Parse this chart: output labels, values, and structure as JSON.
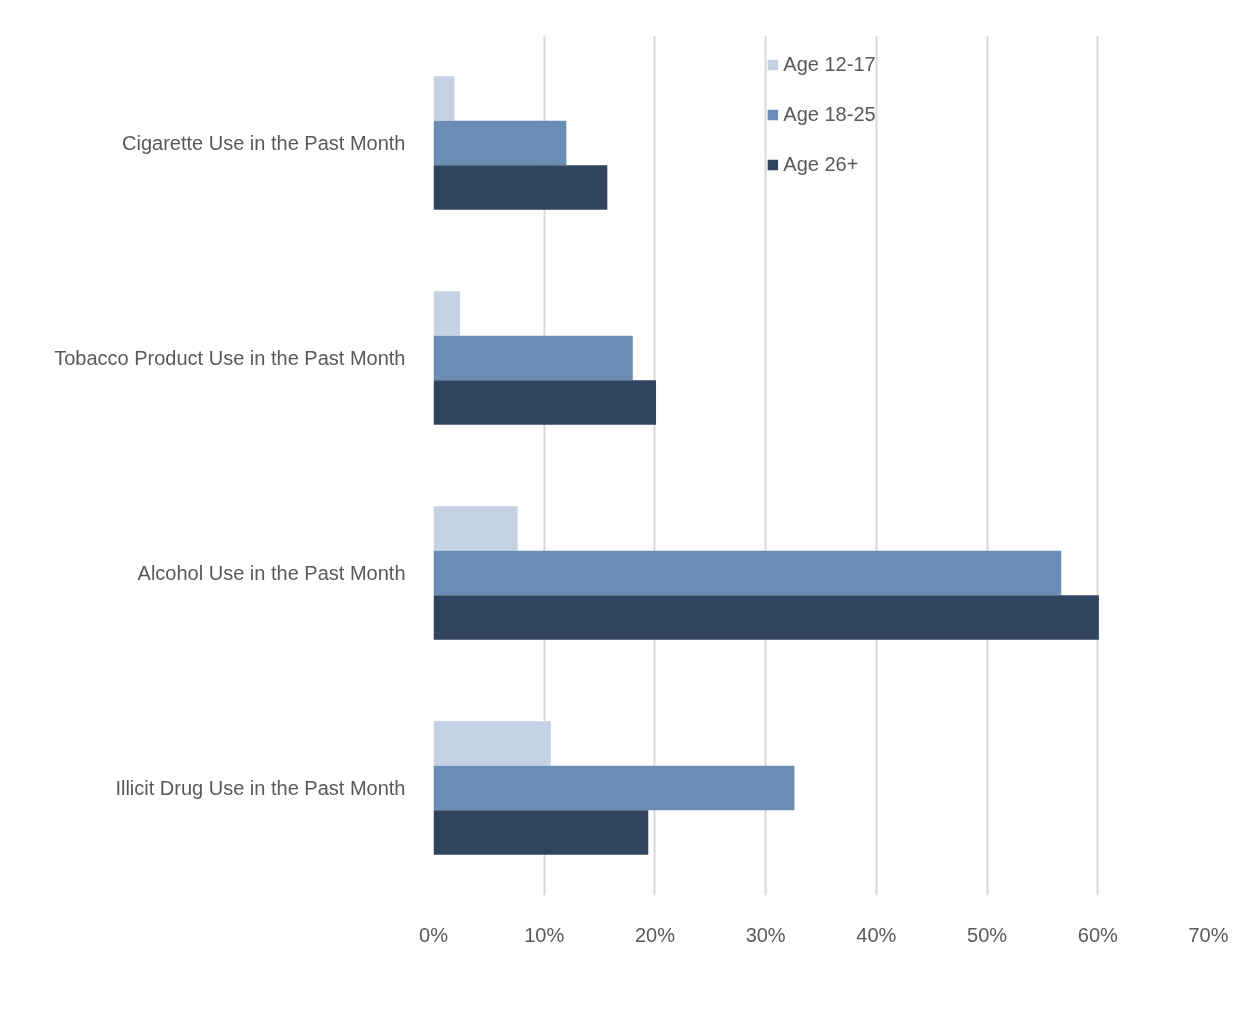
{
  "chart_data": {
    "type": "bar",
    "orientation": "horizontal",
    "categories": [
      "Cigarette Use in the Past Month",
      "Tobacco Product Use in the Past Month",
      "Alcohol Use in the Past Month",
      "Illicit Drug Use in the Past Month"
    ],
    "series": [
      {
        "name": "Age 12-17",
        "color": "#c5d2e3",
        "values": [
          1.9,
          2.4,
          7.6,
          10.6
        ]
      },
      {
        "name": "Age 18-25",
        "color": "#6a8db6",
        "values": [
          12.0,
          18.0,
          56.7,
          32.6
        ]
      },
      {
        "name": "Age 26+",
        "color": "#30445f",
        "values": [
          15.7,
          20.1,
          60.1,
          19.4
        ]
      }
    ],
    "xlim": [
      0,
      70
    ],
    "xticks": [
      {
        "value": 0,
        "label": "0%"
      },
      {
        "value": 10,
        "label": "10%"
      },
      {
        "value": 20,
        "label": "20%"
      },
      {
        "value": 30,
        "label": "30%"
      },
      {
        "value": 40,
        "label": "40%"
      },
      {
        "value": 50,
        "label": "50%"
      },
      {
        "value": 60,
        "label": "60%"
      },
      {
        "value": 70,
        "label": "70%"
      }
    ],
    "grid": "x",
    "legend": "top"
  }
}
